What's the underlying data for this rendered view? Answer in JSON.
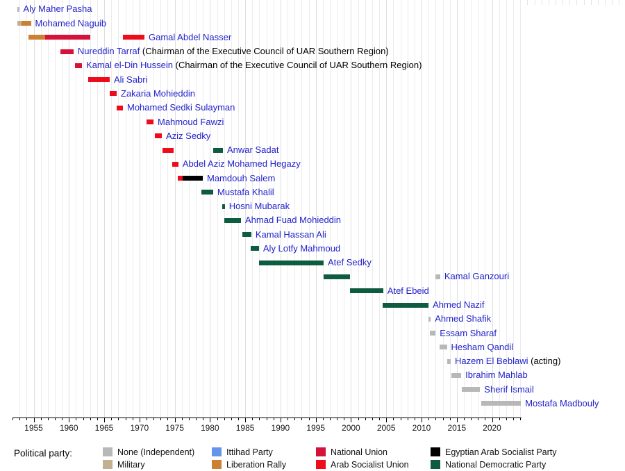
{
  "chart_data": {
    "type": "timeline",
    "title": "",
    "xlabel": "",
    "axis": {
      "min_year": 1952,
      "max_year": 2024.2,
      "major_tick_labels": [
        1955,
        1960,
        1965,
        1970,
        1975,
        1980,
        1985,
        1990,
        1995,
        2000,
        2005,
        2010,
        2015,
        2020
      ],
      "minor_tick_every": 1
    },
    "label_color": "#2222cc",
    "suffix_color": "#000000",
    "parties": {
      "none": {
        "label": "None (Independent)",
        "color": "#b8b8b8"
      },
      "military": {
        "label": "Military",
        "color": "#c3b091"
      },
      "ittihad": {
        "label": "Ittihad Party",
        "color": "#6495ed"
      },
      "liberation": {
        "label": "Liberation Rally",
        "color": "#cd7f32"
      },
      "national_union": {
        "label": "National Union",
        "color": "#d5133a"
      },
      "asu": {
        "label": "Arab Socialist Union",
        "color": "#ee0c1c"
      },
      "easp": {
        "label": "Egyptian Arab Socialist Party",
        "color": "#000000"
      },
      "ndp": {
        "label": "National Democratic Party",
        "color": "#0e5c3f"
      }
    },
    "people": [
      {
        "name": "Aly Maher Pasha",
        "segments": [
          {
            "start": 1952.69,
            "end": 1952.94,
            "party": "none"
          }
        ]
      },
      {
        "name": "Mohamed Naguib",
        "segments": [
          {
            "start": 1952.69,
            "end": 1953.28,
            "party": "military"
          },
          {
            "start": 1953.28,
            "end": 1954.61,
            "party": "liberation"
          }
        ]
      },
      {
        "name": "Gamal Abdel Nasser",
        "segments": [
          {
            "start": 1954.26,
            "end": 1956.63,
            "party": "liberation"
          },
          {
            "start": 1956.63,
            "end": 1963.03,
            "party": "national_union"
          },
          {
            "start": 1967.66,
            "end": 1970.71,
            "party": "asu"
          }
        ]
      },
      {
        "name": "Nureddin Tarraf",
        "suffix": " (Chairman of the Executive Council of UAR Southern Region)",
        "segments": [
          {
            "start": 1958.79,
            "end": 1960.66,
            "party": "national_union"
          }
        ]
      },
      {
        "name": "Kamal el-Din Hussein",
        "suffix": " (Chairman of the Executive Council of UAR Southern Region)",
        "segments": [
          {
            "start": 1960.86,
            "end": 1961.85,
            "party": "national_union"
          }
        ]
      },
      {
        "name": "Ali Sabri",
        "segments": [
          {
            "start": 1962.73,
            "end": 1965.79,
            "party": "asu"
          }
        ]
      },
      {
        "name": "Zakaria Mohieddin",
        "segments": [
          {
            "start": 1965.79,
            "end": 1966.77,
            "party": "asu"
          }
        ]
      },
      {
        "name": "Mohamed Sedki Sulayman",
        "segments": [
          {
            "start": 1966.77,
            "end": 1967.66,
            "party": "asu"
          }
        ]
      },
      {
        "name": "Mahmoud Fawzi",
        "segments": [
          {
            "start": 1971.01,
            "end": 1971.99,
            "party": "asu"
          }
        ]
      },
      {
        "name": "Aziz Sedky",
        "segments": [
          {
            "start": 1972.19,
            "end": 1973.17,
            "party": "asu"
          }
        ]
      },
      {
        "name": "Anwar Sadat",
        "segments": [
          {
            "start": 1973.27,
            "end": 1974.84,
            "party": "asu"
          },
          {
            "start": 1980.46,
            "end": 1981.84,
            "party": "ndp"
          }
        ]
      },
      {
        "name": "Abdel Aziz Mohamed Hegazy",
        "segments": [
          {
            "start": 1974.65,
            "end": 1975.53,
            "party": "asu"
          }
        ]
      },
      {
        "name": "Mamdouh Salem",
        "segments": [
          {
            "start": 1975.44,
            "end": 1976.12,
            "party": "asu"
          },
          {
            "start": 1976.12,
            "end": 1978.98,
            "party": "easp"
          }
        ]
      },
      {
        "name": "Mustafa Khalil",
        "segments": [
          {
            "start": 1978.78,
            "end": 1980.46,
            "party": "ndp"
          }
        ]
      },
      {
        "name": "Hosni Mubarak",
        "segments": [
          {
            "start": 1981.78,
            "end": 1982.1,
            "party": "ndp"
          }
        ]
      },
      {
        "name": "Ahmad Fuad Mohieddin",
        "segments": [
          {
            "start": 1982.03,
            "end": 1984.4,
            "party": "ndp"
          }
        ]
      },
      {
        "name": "Kamal Hassan Ali",
        "segments": [
          {
            "start": 1984.6,
            "end": 1985.87,
            "party": "ndp"
          }
        ]
      },
      {
        "name": "Aly Lotfy Mahmoud",
        "segments": [
          {
            "start": 1985.79,
            "end": 1986.95,
            "party": "ndp"
          }
        ]
      },
      {
        "name": "Atef Sedky",
        "segments": [
          {
            "start": 1986.95,
            "end": 1996.12,
            "party": "ndp"
          }
        ]
      },
      {
        "name": "Kamal Ganzouri",
        "segments": [
          {
            "start": 1996.12,
            "end": 1999.85,
            "party": "ndp"
          },
          {
            "start": 2011.95,
            "end": 2012.65,
            "party": "none"
          }
        ]
      },
      {
        "name": "Atef Ebeid",
        "segments": [
          {
            "start": 1999.85,
            "end": 2004.57,
            "party": "ndp"
          }
        ]
      },
      {
        "name": "Ahmed Nazif",
        "segments": [
          {
            "start": 2004.5,
            "end": 2011.0,
            "party": "ndp"
          }
        ]
      },
      {
        "name": "Ahmed Shafik",
        "segments": [
          {
            "start": 2011.0,
            "end": 2011.3,
            "party": "none"
          }
        ]
      },
      {
        "name": "Essam Sharaf",
        "segments": [
          {
            "start": 2011.15,
            "end": 2012.0,
            "party": "none"
          }
        ]
      },
      {
        "name": "Hesham Qandil",
        "segments": [
          {
            "start": 2012.56,
            "end": 2013.6,
            "party": "none"
          }
        ]
      },
      {
        "name": "Hazem El Beblawi",
        "suffix": " (acting)",
        "segments": [
          {
            "start": 2013.6,
            "end": 2014.14,
            "party": "none"
          }
        ]
      },
      {
        "name": "Ibrahim Mahlab",
        "segments": [
          {
            "start": 2014.24,
            "end": 2015.62,
            "party": "none"
          }
        ]
      },
      {
        "name": "Sherif Ismail",
        "segments": [
          {
            "start": 2015.68,
            "end": 2018.3,
            "party": "none"
          }
        ]
      },
      {
        "name": "Mostafa Madbouly",
        "segments": [
          {
            "start": 2018.45,
            "end": 2024.1,
            "party": "none"
          }
        ]
      }
    ]
  },
  "legend": {
    "title": "Political party:",
    "columns": [
      [
        {
          "party": "none",
          "label": "None (Independent)"
        },
        {
          "party": "military",
          "label": "Military"
        }
      ],
      [
        {
          "party": "ittihad",
          "label": "Ittihad Party"
        },
        {
          "party": "liberation",
          "label": "Liberation Rally"
        }
      ],
      [
        {
          "party": "national_union",
          "label": "National Union"
        },
        {
          "party": "asu",
          "label": "Arab Socialist Union"
        }
      ],
      [
        {
          "party": "easp",
          "label": "Egyptian Arab Socialist Party"
        },
        {
          "party": "ndp",
          "label": "National Democratic Party"
        }
      ]
    ]
  }
}
